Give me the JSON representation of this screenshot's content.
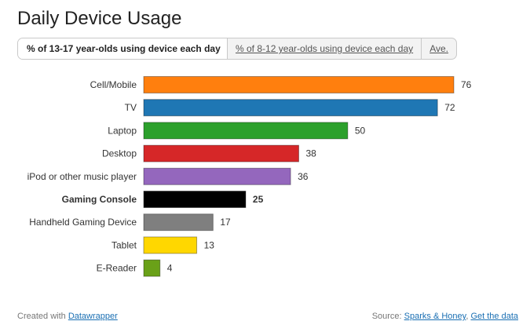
{
  "title": "Daily Device Usage",
  "tabs": [
    {
      "label": "% of 13-17 year-olds using device each day",
      "active": true
    },
    {
      "label": "% of 8-12 year-olds using device each day",
      "active": false
    },
    {
      "label": "Ave.",
      "active": false
    }
  ],
  "footer": {
    "created_prefix": "Created with ",
    "created_link": "Datawrapper",
    "source_prefix": "Source: ",
    "source_link": "Sparks & Honey",
    "separator": ", ",
    "data_link": "Get the data"
  },
  "chart_data": {
    "type": "bar",
    "orientation": "horizontal",
    "title": "Daily Device Usage",
    "categories": [
      "Cell/Mobile",
      "TV",
      "Laptop",
      "Desktop",
      "iPod or other music player",
      "Gaming Console",
      "Handheld Gaming Device",
      "Tablet",
      "E-Reader"
    ],
    "values": [
      76,
      72,
      50,
      38,
      36,
      25,
      17,
      13,
      4
    ],
    "colors": [
      "#ff7f0e",
      "#1f77b4",
      "#2ca02c",
      "#d62728",
      "#9467bd",
      "#000000",
      "#7f7f7f",
      "#ffd700",
      "#6aa118"
    ],
    "highlight": "Gaming Console",
    "xlim": [
      0,
      76
    ],
    "grid": false,
    "legend": "none"
  }
}
